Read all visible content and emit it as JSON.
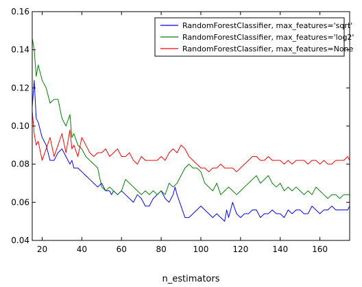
{
  "chart_data": {
    "type": "line",
    "title": "",
    "xlabel": "n_estimators",
    "ylabel": "",
    "xlim": [
      15,
      175
    ],
    "ylim": [
      0.04,
      0.16
    ],
    "xticks": [
      20,
      40,
      60,
      80,
      100,
      120,
      140,
      160
    ],
    "yticks": [
      0.04,
      0.06,
      0.08,
      0.1,
      0.12,
      0.14,
      0.16
    ],
    "ytick_labels": [
      "0.04",
      "0.06",
      "0.08",
      "0.10",
      "0.12",
      "0.14",
      "0.16"
    ],
    "grid": false,
    "legend_position": "top-right",
    "series": [
      {
        "name": "RandomForestClassifier, max_features='sqrt'",
        "color": "#0000ff",
        "x": [
          15,
          16,
          17,
          18,
          20,
          22,
          24,
          26,
          28,
          30,
          32,
          34,
          35,
          36,
          38,
          40,
          42,
          44,
          46,
          48,
          50,
          52,
          54,
          55,
          56,
          58,
          60,
          62,
          64,
          66,
          68,
          70,
          72,
          74,
          76,
          78,
          80,
          82,
          84,
          86,
          87,
          88,
          90,
          92,
          94,
          96,
          98,
          100,
          102,
          104,
          106,
          108,
          110,
          112,
          113,
          114,
          116,
          118,
          120,
          122,
          124,
          126,
          128,
          130,
          132,
          134,
          136,
          138,
          140,
          142,
          144,
          146,
          148,
          150,
          152,
          154,
          156,
          158,
          160,
          162,
          164,
          166,
          168,
          170,
          172,
          174,
          175
        ],
        "values": [
          0.11,
          0.124,
          0.104,
          0.102,
          0.094,
          0.09,
          0.082,
          0.082,
          0.086,
          0.088,
          0.084,
          0.08,
          0.082,
          0.078,
          0.078,
          0.076,
          0.074,
          0.072,
          0.07,
          0.068,
          0.07,
          0.066,
          0.066,
          0.064,
          0.066,
          0.064,
          0.066,
          0.064,
          0.062,
          0.06,
          0.064,
          0.062,
          0.058,
          0.058,
          0.062,
          0.064,
          0.066,
          0.062,
          0.06,
          0.064,
          0.068,
          0.064,
          0.058,
          0.052,
          0.052,
          0.054,
          0.056,
          0.058,
          0.056,
          0.054,
          0.052,
          0.054,
          0.052,
          0.05,
          0.056,
          0.052,
          0.06,
          0.054,
          0.052,
          0.054,
          0.054,
          0.056,
          0.056,
          0.052,
          0.054,
          0.054,
          0.056,
          0.054,
          0.054,
          0.052,
          0.056,
          0.054,
          0.056,
          0.056,
          0.054,
          0.054,
          0.058,
          0.056,
          0.054,
          0.056,
          0.056,
          0.058,
          0.056,
          0.056,
          0.056,
          0.056,
          0.058
        ]
      },
      {
        "name": "RandomForestClassifier, max_features='log2'",
        "color": "#008000",
        "x": [
          15,
          16,
          17,
          18,
          20,
          22,
          24,
          26,
          28,
          30,
          32,
          34,
          35,
          36,
          38,
          40,
          42,
          44,
          46,
          48,
          50,
          52,
          54,
          56,
          58,
          60,
          62,
          64,
          66,
          68,
          70,
          72,
          74,
          76,
          78,
          80,
          82,
          84,
          86,
          88,
          90,
          92,
          94,
          96,
          98,
          100,
          102,
          104,
          106,
          108,
          110,
          112,
          114,
          116,
          118,
          120,
          122,
          124,
          126,
          128,
          130,
          132,
          134,
          136,
          138,
          140,
          142,
          144,
          146,
          148,
          150,
          152,
          154,
          156,
          158,
          160,
          162,
          164,
          166,
          168,
          170,
          172,
          174,
          175
        ],
        "values": [
          0.146,
          0.14,
          0.126,
          0.132,
          0.124,
          0.12,
          0.112,
          0.114,
          0.114,
          0.104,
          0.1,
          0.106,
          0.094,
          0.096,
          0.09,
          0.088,
          0.084,
          0.082,
          0.08,
          0.078,
          0.068,
          0.066,
          0.068,
          0.066,
          0.064,
          0.066,
          0.072,
          0.07,
          0.068,
          0.066,
          0.064,
          0.066,
          0.064,
          0.066,
          0.064,
          0.066,
          0.064,
          0.07,
          0.068,
          0.07,
          0.074,
          0.078,
          0.08,
          0.078,
          0.078,
          0.076,
          0.07,
          0.068,
          0.066,
          0.07,
          0.064,
          0.066,
          0.068,
          0.066,
          0.064,
          0.066,
          0.068,
          0.07,
          0.072,
          0.074,
          0.07,
          0.072,
          0.074,
          0.07,
          0.068,
          0.07,
          0.066,
          0.068,
          0.066,
          0.068,
          0.066,
          0.064,
          0.066,
          0.064,
          0.068,
          0.066,
          0.064,
          0.062,
          0.064,
          0.064,
          0.062,
          0.064,
          0.064,
          0.064
        ]
      },
      {
        "name": "RandomForestClassifier, max_features=None",
        "color": "#ff0000",
        "x": [
          15,
          16,
          17,
          18,
          20,
          22,
          24,
          26,
          28,
          30,
          32,
          34,
          35,
          36,
          38,
          40,
          42,
          44,
          46,
          48,
          50,
          52,
          54,
          56,
          58,
          60,
          62,
          64,
          66,
          68,
          70,
          72,
          74,
          76,
          78,
          80,
          82,
          84,
          86,
          88,
          90,
          92,
          94,
          96,
          98,
          100,
          102,
          104,
          106,
          108,
          110,
          112,
          114,
          116,
          118,
          120,
          122,
          124,
          126,
          128,
          130,
          132,
          134,
          136,
          138,
          140,
          142,
          144,
          146,
          148,
          150,
          152,
          154,
          156,
          158,
          160,
          162,
          164,
          166,
          168,
          170,
          172,
          174,
          175
        ],
        "values": [
          0.108,
          0.096,
          0.09,
          0.092,
          0.082,
          0.088,
          0.094,
          0.084,
          0.09,
          0.096,
          0.086,
          0.098,
          0.088,
          0.09,
          0.084,
          0.094,
          0.09,
          0.086,
          0.084,
          0.086,
          0.086,
          0.088,
          0.084,
          0.086,
          0.088,
          0.084,
          0.084,
          0.086,
          0.082,
          0.08,
          0.084,
          0.082,
          0.082,
          0.082,
          0.082,
          0.084,
          0.082,
          0.086,
          0.088,
          0.086,
          0.09,
          0.088,
          0.084,
          0.082,
          0.08,
          0.078,
          0.078,
          0.076,
          0.078,
          0.078,
          0.08,
          0.078,
          0.078,
          0.078,
          0.076,
          0.078,
          0.08,
          0.082,
          0.084,
          0.084,
          0.082,
          0.082,
          0.084,
          0.082,
          0.082,
          0.082,
          0.08,
          0.082,
          0.08,
          0.082,
          0.082,
          0.082,
          0.08,
          0.082,
          0.082,
          0.08,
          0.082,
          0.08,
          0.08,
          0.082,
          0.082,
          0.082,
          0.084,
          0.082
        ]
      }
    ]
  }
}
